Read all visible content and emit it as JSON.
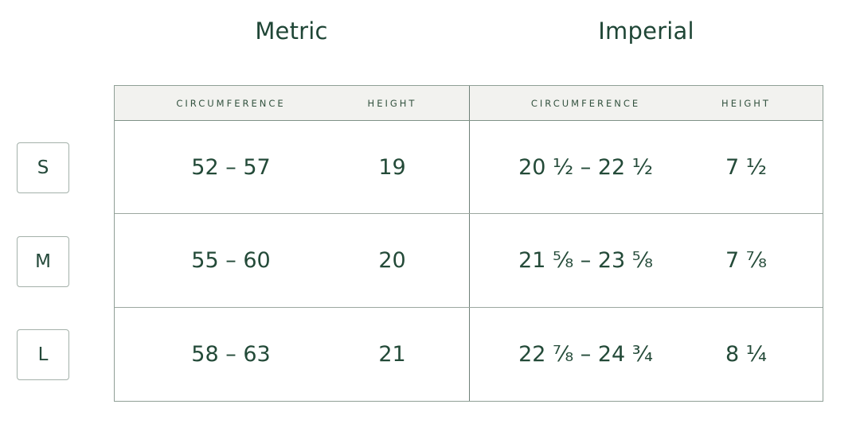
{
  "sections": [
    {
      "title": "Metric",
      "columns": [
        "CIRCUMFERENCE",
        "HEIGHT"
      ]
    },
    {
      "title": "Imperial",
      "columns": [
        "CIRCUMFERENCE",
        "HEIGHT"
      ]
    }
  ],
  "sizes": [
    {
      "label": "S",
      "metric": {
        "circumference": "52 – 57",
        "height": "19"
      },
      "imperial": {
        "circumference": "20 ¹⁄₂ – 22 ¹⁄₂",
        "height": "7 ¹⁄₂"
      }
    },
    {
      "label": "M",
      "metric": {
        "circumference": "55 – 60",
        "height": "20"
      },
      "imperial": {
        "circumference": "21 ⁵⁄₈ – 23 ⁵⁄₈",
        "height": "7 ⁷⁄₈"
      }
    },
    {
      "label": "L",
      "metric": {
        "circumference": "58 – 63",
        "height": "21"
      },
      "imperial": {
        "circumference": "22 ⁷⁄₈ – 24 ³⁄₄",
        "height": "8 ¹⁄₄"
      }
    }
  ],
  "colors": {
    "text": "#234a38",
    "header_background": "#f2f2ef",
    "outer_border": "#8f9f96",
    "section_divider": "#6e8077",
    "row_divider": "#9ca7a0"
  }
}
